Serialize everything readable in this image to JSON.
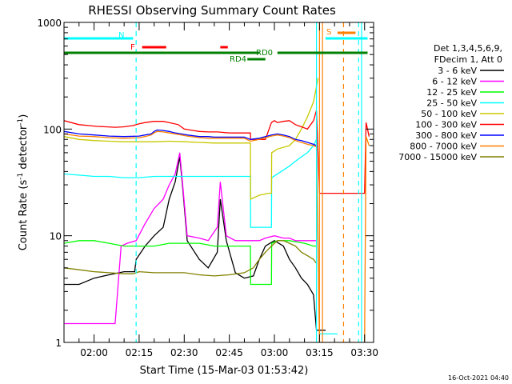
{
  "chart_data": {
    "type": "line",
    "title": "RHESSI Observing Summary Count Rates",
    "xlabel": "Start Time (15-Mar-03 01:53:42)",
    "ylabel": "Count Rate (s",
    "ylabel_sup": "-1",
    "ylabel_tail": " detector",
    "ylabel_sup2": "-1",
    "ylabel_close": ")",
    "xlim": [
      -5,
      98
    ],
    "ylim": [
      1,
      1000
    ],
    "yscale": "log",
    "x_ticks": [
      {
        "v": 5,
        "label": "02:00"
      },
      {
        "v": 20,
        "label": "02:15"
      },
      {
        "v": 35,
        "label": "02:30"
      },
      {
        "v": 50,
        "label": "02:45"
      },
      {
        "v": 65,
        "label": "03:00"
      },
      {
        "v": 80,
        "label": "03:15"
      },
      {
        "v": 95,
        "label": "03:30"
      }
    ],
    "y_ticks": [
      {
        "v": 1,
        "label": "1"
      },
      {
        "v": 10,
        "label": "10"
      },
      {
        "v": 100,
        "label": "100"
      },
      {
        "v": 1000,
        "label": "1000"
      }
    ],
    "timestamp": "16-Oct-2021 04:40",
    "legend_header": [
      "Det 1,3,4,5,6,9,",
      "FDecim 1, Att 0"
    ],
    "legend_position": "right",
    "series": [
      {
        "name": "3 - 6 keV",
        "color": "#000000",
        "x": [
          -5,
          0,
          5,
          10,
          15,
          18.5,
          19,
          22,
          25,
          28,
          30,
          32,
          33.5,
          34.5,
          36,
          40,
          43,
          46,
          47,
          49,
          52,
          55,
          58,
          60,
          62,
          65,
          68,
          70,
          72,
          74,
          76,
          78,
          79,
          80,
          81,
          82
        ],
        "y": [
          3.5,
          3.5,
          4,
          4.3,
          4.6,
          4.6,
          6,
          8,
          10,
          12,
          22,
          32,
          55,
          28,
          9,
          6,
          5,
          7,
          22,
          9,
          4.5,
          4,
          4.2,
          6,
          8,
          9,
          8,
          6,
          5,
          4,
          3.5,
          2.8,
          1.3,
          1.3,
          1.3,
          1.3
        ]
      },
      {
        "name": "6 - 12 keV",
        "color": "#ff00ff",
        "x": [
          -5,
          0,
          4,
          9,
          12,
          14,
          16,
          19,
          22,
          25,
          28,
          30,
          32,
          33.5,
          34.5,
          36,
          40,
          43,
          46,
          47,
          49,
          52,
          55,
          58,
          60,
          62,
          65,
          68,
          70,
          72,
          74,
          76,
          78,
          79
        ],
        "y": [
          1.5,
          1.5,
          1.5,
          1.5,
          1.5,
          8,
          8.5,
          9,
          13,
          18,
          22,
          30,
          38,
          60,
          30,
          10,
          9.5,
          9,
          12,
          32,
          10,
          9,
          9,
          9,
          9,
          9.5,
          10,
          9.5,
          9.5,
          9,
          9,
          9,
          9,
          9
        ]
      },
      {
        "name": "12 - 25 keV",
        "color": "#00ff00",
        "x": [
          -5,
          0,
          5,
          10,
          15,
          19,
          22,
          25,
          30,
          35,
          40,
          45,
          50,
          55,
          56,
          57,
          57.1,
          60,
          63,
          64,
          64.1,
          66,
          70,
          75,
          78,
          79
        ],
        "y": [
          8.5,
          9,
          9,
          8.5,
          8,
          8,
          8,
          8,
          8.5,
          8.5,
          8.5,
          8,
          8,
          8,
          8,
          8,
          3.5,
          3.5,
          3.5,
          3.5,
          8.5,
          9,
          9,
          8.5,
          8,
          8
        ]
      },
      {
        "name": "25 - 50 keV",
        "color": "#00ffff",
        "x": [
          -5,
          0,
          5,
          10,
          15,
          19,
          20,
          25,
          30,
          35,
          40,
          45,
          50,
          55,
          57,
          57.1,
          60,
          62,
          64,
          64.1,
          66,
          70,
          72,
          74,
          76,
          77,
          78,
          79,
          80,
          81,
          82,
          84,
          86
        ],
        "y": [
          38,
          37,
          36,
          36,
          35,
          35,
          35,
          36,
          36,
          36,
          36,
          36,
          36,
          36,
          36,
          12,
          12,
          12,
          12,
          35,
          38,
          45,
          50,
          55,
          60,
          65,
          70,
          80,
          1.2,
          1.2,
          1.2,
          1.2,
          1.2
        ]
      },
      {
        "name": "50 - 100 keV",
        "color": "#c8c800",
        "x": [
          -5,
          0,
          5,
          10,
          15,
          20,
          25,
          30,
          35,
          40,
          45,
          50,
          55,
          56,
          57,
          57.1,
          60,
          63,
          64,
          64.1,
          66,
          70,
          72,
          74,
          76,
          78,
          79,
          79.5
        ],
        "y": [
          85,
          80,
          78,
          77,
          76,
          76,
          76,
          77,
          76,
          75,
          74,
          74,
          74,
          74,
          74,
          22,
          24,
          25,
          25,
          60,
          65,
          70,
          80,
          100,
          130,
          180,
          250,
          300
        ]
      },
      {
        "name": "100 - 300 keV",
        "color": "#ff0000",
        "x": [
          -5,
          0,
          3,
          6,
          9,
          12,
          15,
          18,
          20,
          22,
          25,
          28,
          30,
          33,
          35,
          38,
          40,
          43,
          46,
          50,
          53,
          55,
          56,
          57,
          57.1,
          58,
          60,
          62,
          64,
          65,
          66,
          68,
          70,
          72,
          74,
          76,
          78,
          79,
          80,
          82,
          84,
          86,
          88,
          90,
          92,
          93,
          94,
          95,
          95.5,
          96.5
        ],
        "y": [
          120,
          110,
          108,
          106,
          105,
          104,
          105,
          108,
          112,
          115,
          118,
          118,
          115,
          110,
          100,
          97,
          95,
          94,
          94,
          92,
          92,
          92,
          92,
          92,
          80,
          80,
          80,
          80,
          115,
          120,
          115,
          118,
          120,
          110,
          105,
          100,
          120,
          150,
          25,
          25,
          25,
          25,
          25,
          25,
          25,
          25,
          25,
          25,
          115,
          85
        ]
      },
      {
        "name": "300 - 800 keV",
        "color": "#0000ff",
        "x": [
          -5,
          0,
          5,
          10,
          15,
          20,
          22,
          24,
          25,
          26,
          28,
          30,
          32,
          34,
          36,
          40,
          43,
          45,
          50,
          55,
          57,
          60,
          62,
          64,
          66,
          68,
          70,
          72,
          74,
          76,
          78,
          79
        ],
        "y": [
          95,
          90,
          88,
          86,
          85,
          86,
          88,
          90,
          95,
          98,
          97,
          95,
          92,
          90,
          88,
          85,
          85,
          84,
          84,
          84,
          80,
          82,
          85,
          88,
          90,
          88,
          85,
          80,
          78,
          75,
          72,
          70
        ]
      },
      {
        "name": "800 - 7000 keV",
        "color": "#ff8000",
        "x": [
          -5,
          0,
          5,
          10,
          15,
          20,
          22,
          24,
          25,
          26,
          28,
          30,
          32,
          34,
          36,
          40,
          43,
          45,
          50,
          55,
          57,
          60,
          62,
          64,
          66,
          68,
          70,
          72,
          74,
          76,
          78,
          79,
          80,
          82,
          84,
          86,
          88,
          90,
          92,
          93,
          94,
          95,
          95.5,
          96.5
        ],
        "y": [
          90,
          86,
          85,
          83,
          82,
          83,
          85,
          88,
          92,
          95,
          94,
          92,
          90,
          88,
          86,
          83,
          82,
          82,
          82,
          82,
          77,
          80,
          83,
          86,
          88,
          86,
          83,
          78,
          75,
          72,
          70,
          68,
          1,
          1,
          1,
          1,
          1,
          1,
          1,
          1,
          1,
          1,
          85,
          70
        ]
      },
      {
        "name": "7000 - 15000 keV",
        "color": "#808000",
        "x": [
          -5,
          0,
          5,
          10,
          15,
          18,
          19,
          20,
          25,
          30,
          35,
          40,
          45,
          50,
          55,
          58,
          60,
          62,
          64,
          66,
          68,
          70,
          72,
          74,
          76,
          78,
          79
        ],
        "y": [
          5,
          4.8,
          4.6,
          4.5,
          4.4,
          4.4,
          4.5,
          4.6,
          4.5,
          4.5,
          4.5,
          4.3,
          4.2,
          4.3,
          4.5,
          5,
          6,
          7,
          8,
          9,
          9,
          8.5,
          8,
          7,
          6.5,
          6,
          5.5
        ]
      }
    ],
    "flag_bars": [
      {
        "label": "N",
        "color": "#00ffff",
        "y_row": 0,
        "segments": [
          [
            -5,
            18
          ],
          [
            82,
            96
          ]
        ]
      },
      {
        "label": "S",
        "color": "#ff8000",
        "y_row": 1,
        "segments": [
          [
            86,
            92
          ]
        ]
      },
      {
        "label": "F",
        "color": "#ff0000",
        "y_row": 2,
        "segments": [
          [
            21,
            29
          ],
          [
            47,
            49.5
          ]
        ]
      },
      {
        "label": "RD0",
        "color": "#008000",
        "y_row": 3,
        "segments": [
          [
            -5,
            60
          ],
          [
            66,
            96
          ]
        ]
      },
      {
        "label": "RD4",
        "color": "#008000",
        "y_row": 4,
        "segments": [
          [
            56,
            62
          ]
        ]
      }
    ],
    "vlines": [
      {
        "x": 19,
        "color": "#00ffff",
        "dash": true
      },
      {
        "x": 79,
        "color": "#00ffff",
        "dash": false
      },
      {
        "x": 80,
        "color": "#ff8000",
        "dash": false
      },
      {
        "x": 81,
        "color": "#ff8000",
        "dash": false
      },
      {
        "x": 88,
        "color": "#ff8000",
        "dash": true
      },
      {
        "x": 93,
        "color": "#00ffff",
        "dash": true
      },
      {
        "x": 94,
        "color": "#00ffff",
        "dash": false
      }
    ]
  }
}
